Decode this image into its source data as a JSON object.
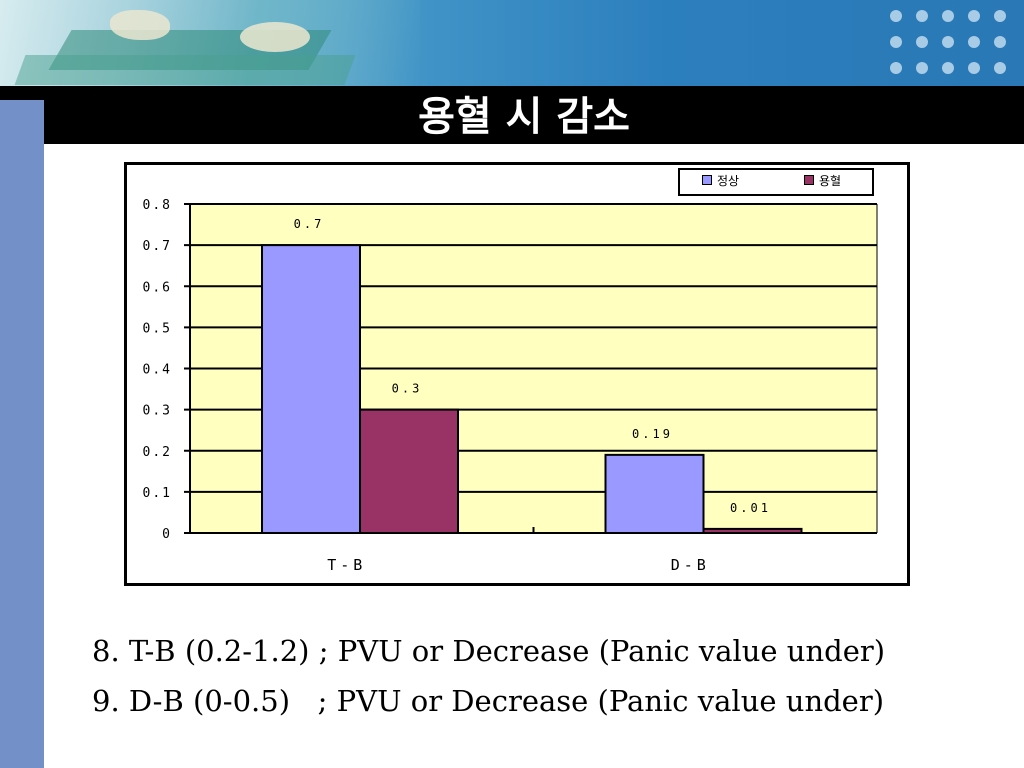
{
  "slide": {
    "title": "용혈 시 감소",
    "captions": [
      "8. T-B (0.2-1.2) ; PVU or Decrease (Panic value under)",
      "9. D-B (0-0.5)   ; PVU or Decrease (Panic value under)"
    ]
  },
  "colors": {
    "plot_bg": "#ffffc0",
    "series_normal": "#9999ff",
    "series_hemolysis": "#993366"
  },
  "chart_data": {
    "type": "bar",
    "title": "",
    "xlabel": "",
    "ylabel": "",
    "categories": [
      "T-B",
      "D-B"
    ],
    "ylim": [
      0,
      0.8
    ],
    "yticks": [
      0,
      0.1,
      0.2,
      0.3,
      0.4,
      0.5,
      0.6,
      0.7,
      0.8
    ],
    "ytick_labels": [
      "0",
      "0.1",
      "0.2",
      "0.3",
      "0.4",
      "0.5",
      "0.6",
      "0.7",
      "0.8"
    ],
    "grid": true,
    "legend_position": "top-right",
    "series": [
      {
        "name": "정상",
        "values": [
          0.7,
          0.19
        ],
        "labels": [
          "0.7",
          "0.19"
        ]
      },
      {
        "name": "용혈",
        "values": [
          0.3,
          0.01
        ],
        "labels": [
          "0.3",
          "0.01"
        ]
      }
    ]
  }
}
